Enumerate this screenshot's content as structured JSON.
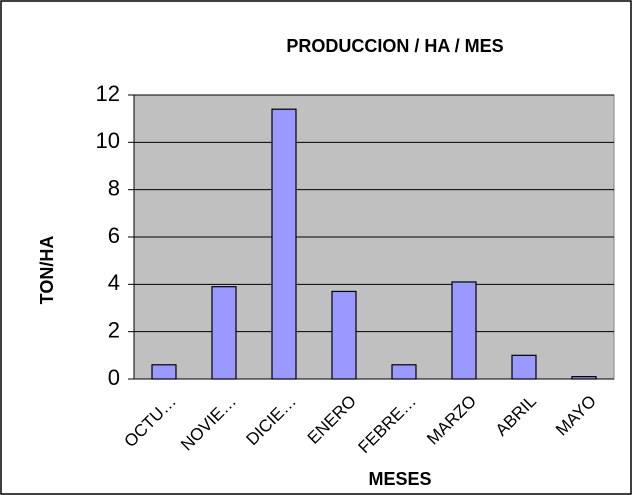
{
  "chart_data": {
    "type": "bar",
    "title": "PRODUCCION / HA / MES",
    "x_label": "MESES",
    "y_label": "TON/HA",
    "categories": [
      "OCTU…",
      "NOVIE…",
      "DICIE…",
      "ENERO",
      "FEBRE…",
      "MARZO",
      "ABRIL",
      "MAYO"
    ],
    "values": [
      0.6,
      3.9,
      11.4,
      3.7,
      0.6,
      4.1,
      1.0,
      0.1
    ],
    "color": "#9999ff",
    "ylim": [
      0,
      12
    ],
    "yticks": [
      0,
      2,
      4,
      6,
      8,
      10,
      12
    ],
    "grid": true
  }
}
